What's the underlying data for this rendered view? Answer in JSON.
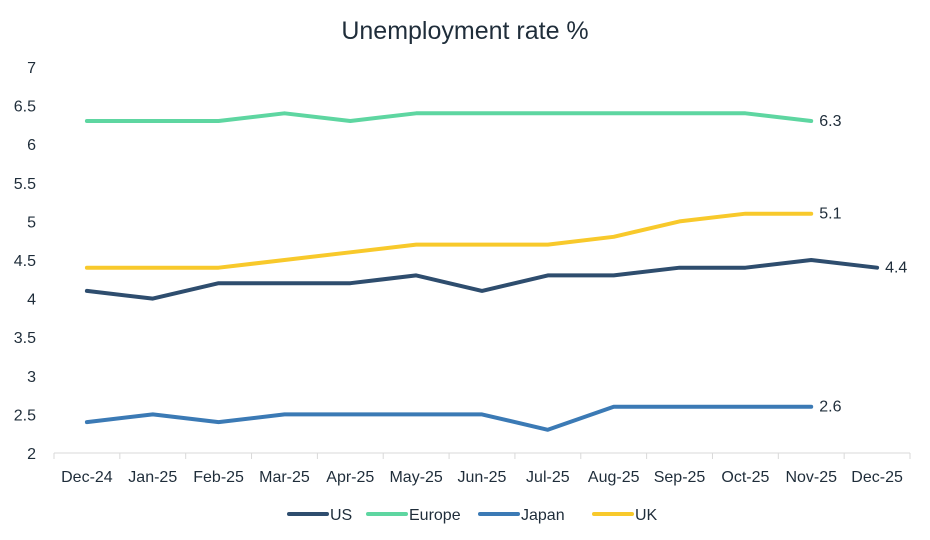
{
  "chart_data": {
    "type": "line",
    "title": "Unemployment rate %",
    "xlabel": "",
    "ylabel": "",
    "ylim": [
      2,
      7
    ],
    "yticks": [
      "2",
      "2.5",
      "3",
      "3.5",
      "4",
      "4.5",
      "5",
      "5.5",
      "6",
      "6.5",
      "7"
    ],
    "categories": [
      "Dec-24",
      "Jan-25",
      "Feb-25",
      "Mar-25",
      "Apr-25",
      "May-25",
      "Jun-25",
      "Jul-25",
      "Aug-25",
      "Sep-25",
      "Oct-25",
      "Nov-25",
      "Dec-25"
    ],
    "grid": "vertical separators",
    "legend": "bottom",
    "series": [
      {
        "name": "US",
        "color": "#2e4d6e",
        "values": [
          4.1,
          4.0,
          4.2,
          4.2,
          4.2,
          4.3,
          4.1,
          4.3,
          4.3,
          4.4,
          4.4,
          4.5,
          4.4
        ],
        "end_label": "4.4"
      },
      {
        "name": "Europe",
        "color": "#5ed6a1",
        "values": [
          6.3,
          6.3,
          6.3,
          6.4,
          6.3,
          6.4,
          6.4,
          6.4,
          6.4,
          6.4,
          6.4,
          6.3,
          null
        ],
        "end_label": "6.3"
      },
      {
        "name": "Japan",
        "color": "#3b7ab5",
        "values": [
          2.4,
          2.5,
          2.4,
          2.5,
          2.5,
          2.5,
          2.5,
          2.3,
          2.6,
          2.6,
          2.6,
          2.6,
          null
        ],
        "end_label": "2.6"
      },
      {
        "name": "UK",
        "color": "#f8c92b",
        "values": [
          4.4,
          4.4,
          4.4,
          4.5,
          4.6,
          4.7,
          4.7,
          4.7,
          4.8,
          5.0,
          5.1,
          5.1,
          null
        ],
        "end_label": "5.1"
      }
    ]
  }
}
